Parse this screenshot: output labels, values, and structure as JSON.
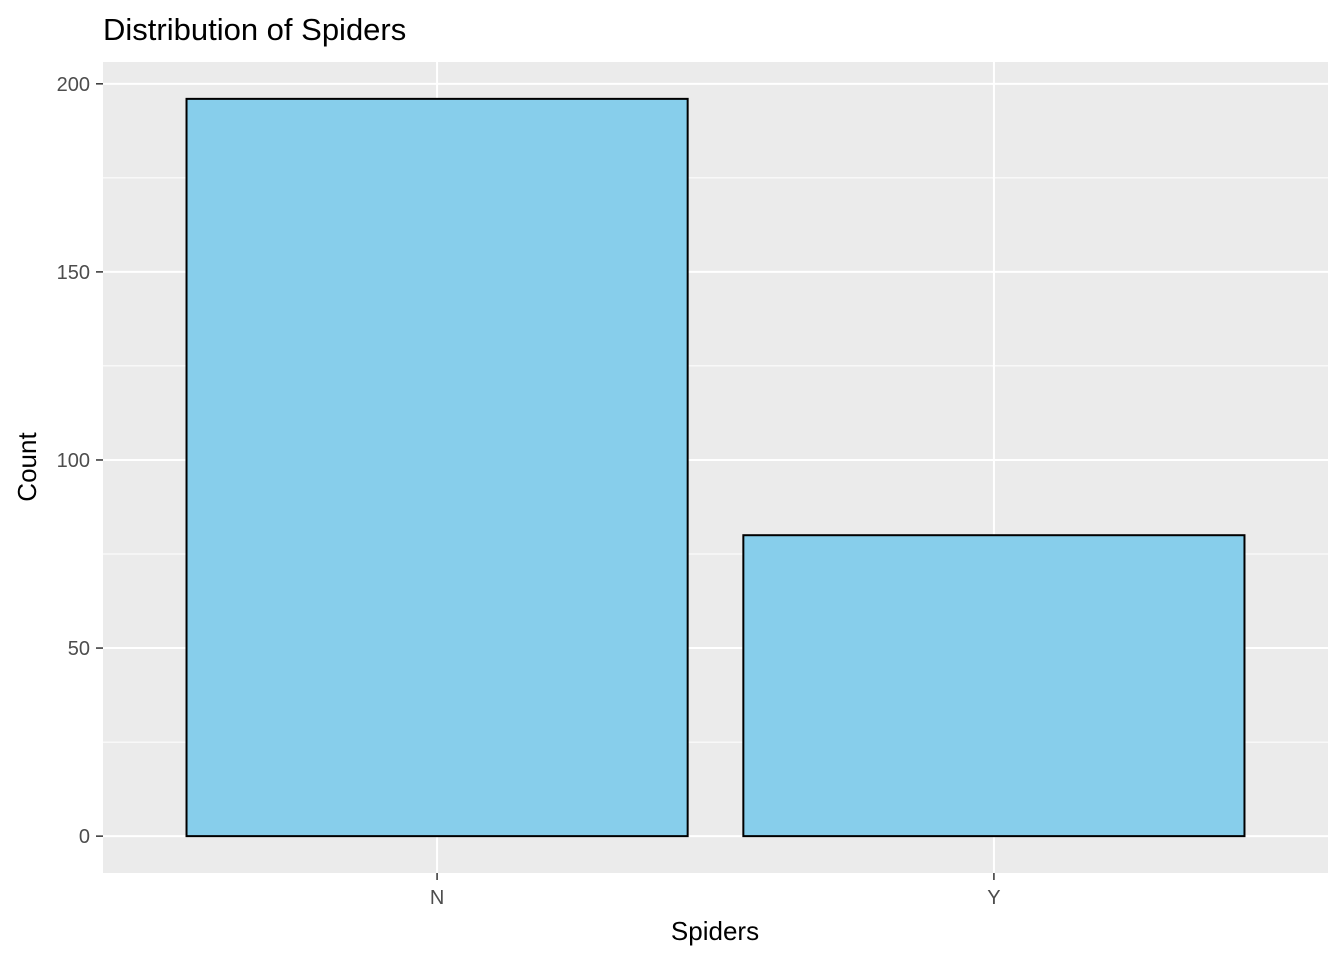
{
  "chart_data": {
    "type": "bar",
    "title": "Distribution of Spiders",
    "xlabel": "Spiders",
    "ylabel": "Count",
    "categories": [
      "N",
      "Y"
    ],
    "values": [
      196,
      80
    ],
    "ylim": [
      -9.8,
      205.8
    ],
    "yticks": [
      0,
      50,
      100,
      150,
      200
    ],
    "grid": true,
    "legend": "none",
    "colors": {
      "bar_fill": "#87CEEB",
      "bar_outline": "#000000",
      "panel_background": "#EBEBEB",
      "grid": "#FFFFFF",
      "tick_text": "#4D4D4D"
    }
  }
}
